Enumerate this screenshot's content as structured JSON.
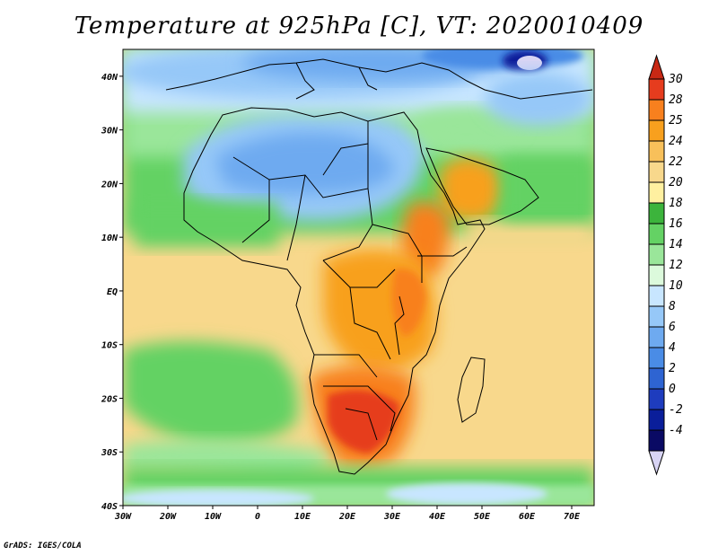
{
  "title": "Temperature at 925hPa [C], VT: 2020010409",
  "footer": "GrADS: IGES/COLA",
  "map": {
    "projection": "latlon",
    "lon_range": [
      -30,
      75
    ],
    "lat_range": [
      -40,
      45
    ],
    "lon_ticks": [
      {
        "value": -30,
        "label": "30W"
      },
      {
        "value": -20,
        "label": "20W"
      },
      {
        "value": -10,
        "label": "10W"
      },
      {
        "value": 0,
        "label": "0"
      },
      {
        "value": 10,
        "label": "10E"
      },
      {
        "value": 20,
        "label": "20E"
      },
      {
        "value": 30,
        "label": "30E"
      },
      {
        "value": 40,
        "label": "40E"
      },
      {
        "value": 50,
        "label": "50E"
      },
      {
        "value": 60,
        "label": "60E"
      },
      {
        "value": 70,
        "label": "70E"
      }
    ],
    "lat_ticks": [
      {
        "value": 40,
        "label": "40N"
      },
      {
        "value": 30,
        "label": "30N"
      },
      {
        "value": 20,
        "label": "20N"
      },
      {
        "value": 10,
        "label": "10N"
      },
      {
        "value": 0,
        "label": "EQ"
      },
      {
        "value": -10,
        "label": "10S"
      },
      {
        "value": -20,
        "label": "20S"
      },
      {
        "value": -30,
        "label": "30S"
      },
      {
        "value": -40,
        "label": "40S"
      }
    ]
  },
  "colorbar": {
    "top_triangle_color": "#c82814",
    "bottom_triangle_color": "#d8d4f4",
    "levels": [
      {
        "label": "30",
        "color": "#e63c1e"
      },
      {
        "label": "28",
        "color": "#f8801e"
      },
      {
        "label": "25",
        "color": "#f8a01e"
      },
      {
        "label": "24",
        "color": "#f8c05a"
      },
      {
        "label": "22",
        "color": "#f8d88c"
      },
      {
        "label": "20",
        "color": "#fff0a0"
      },
      {
        "label": "18",
        "color": "#3cb43c"
      },
      {
        "label": "16",
        "color": "#64d264"
      },
      {
        "label": "14",
        "color": "#9ae69a"
      },
      {
        "label": "12",
        "color": "#dcfadc"
      },
      {
        "label": "10",
        "color": "#c8e6ff"
      },
      {
        "label": "8",
        "color": "#96c8f8"
      },
      {
        "label": "6",
        "color": "#6eaaf0"
      },
      {
        "label": "4",
        "color": "#4a8ce6"
      },
      {
        "label": "2",
        "color": "#2e64d2"
      },
      {
        "label": "0",
        "color": "#1e3cbe"
      },
      {
        "label": "-2",
        "color": "#0a1e9a"
      },
      {
        "label": "-4",
        "color": "#0a0a64"
      }
    ]
  }
}
